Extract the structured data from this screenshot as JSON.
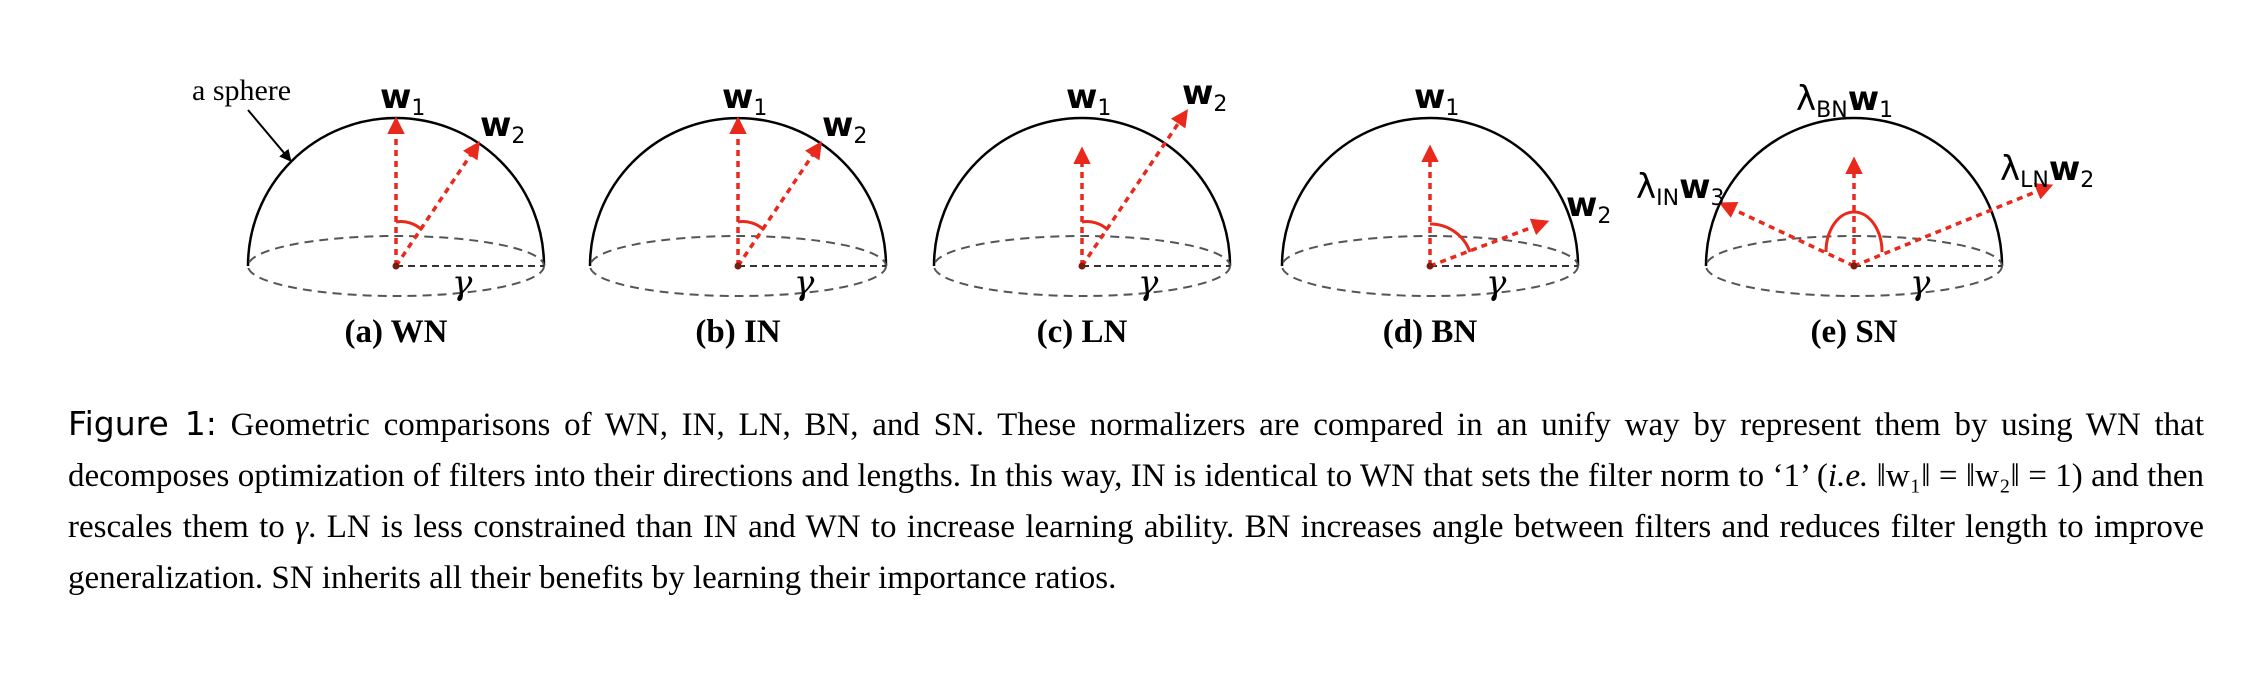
{
  "annotation": {
    "sphere_label": "a sphere"
  },
  "panels": [
    {
      "caption": "(a) WN",
      "vectors": [
        {
          "symbol": "w",
          "sub": "1"
        },
        {
          "symbol": "w",
          "sub": "2"
        }
      ],
      "gamma": "γ"
    },
    {
      "caption": "(b) IN",
      "vectors": [
        {
          "symbol": "w",
          "sub": "1"
        },
        {
          "symbol": "w",
          "sub": "2"
        }
      ],
      "gamma": "γ"
    },
    {
      "caption": "(c) LN",
      "vectors": [
        {
          "symbol": "w",
          "sub": "1"
        },
        {
          "symbol": "w",
          "sub": "2"
        }
      ],
      "gamma": "γ"
    },
    {
      "caption": "(d) BN",
      "vectors": [
        {
          "symbol": "w",
          "sub": "1"
        },
        {
          "symbol": "w",
          "sub": "2"
        }
      ],
      "gamma": "γ"
    },
    {
      "caption": "(e) SN",
      "vectors": [
        {
          "prefix": "λ",
          "prefix_sub": "BN",
          "symbol": "w",
          "sub": "1"
        },
        {
          "prefix": "λ",
          "prefix_sub": "LN",
          "symbol": "w",
          "sub": "2"
        },
        {
          "prefix": "λ",
          "prefix_sub": "IN",
          "symbol": "w",
          "sub": "3"
        }
      ],
      "gamma": "γ"
    }
  ],
  "caption": {
    "label": "Figure 1:",
    "part1": "Geometric comparisons of WN, IN, LN, BN, and SN. These normalizers are compared in an unify way by represent them by using WN that decomposes optimization of filters into their directions and lengths. In this way, IN is identical to WN that sets the filter norm to ‘1’ (",
    "ie": "i.e.",
    "formula": " ‖w₁‖ = ‖w₂‖ = 1",
    "part2": ") and then rescales them to ",
    "gamma": "γ",
    "part3": ". LN is less constrained than IN and WN to increase learning ability. BN increases angle between filters and reduces filter length to improve generalization. SN inherits all their benefits by learning their importance ratios."
  },
  "colors": {
    "vector": "#e8291c",
    "outline": "#000000",
    "dashed": "#555555"
  }
}
